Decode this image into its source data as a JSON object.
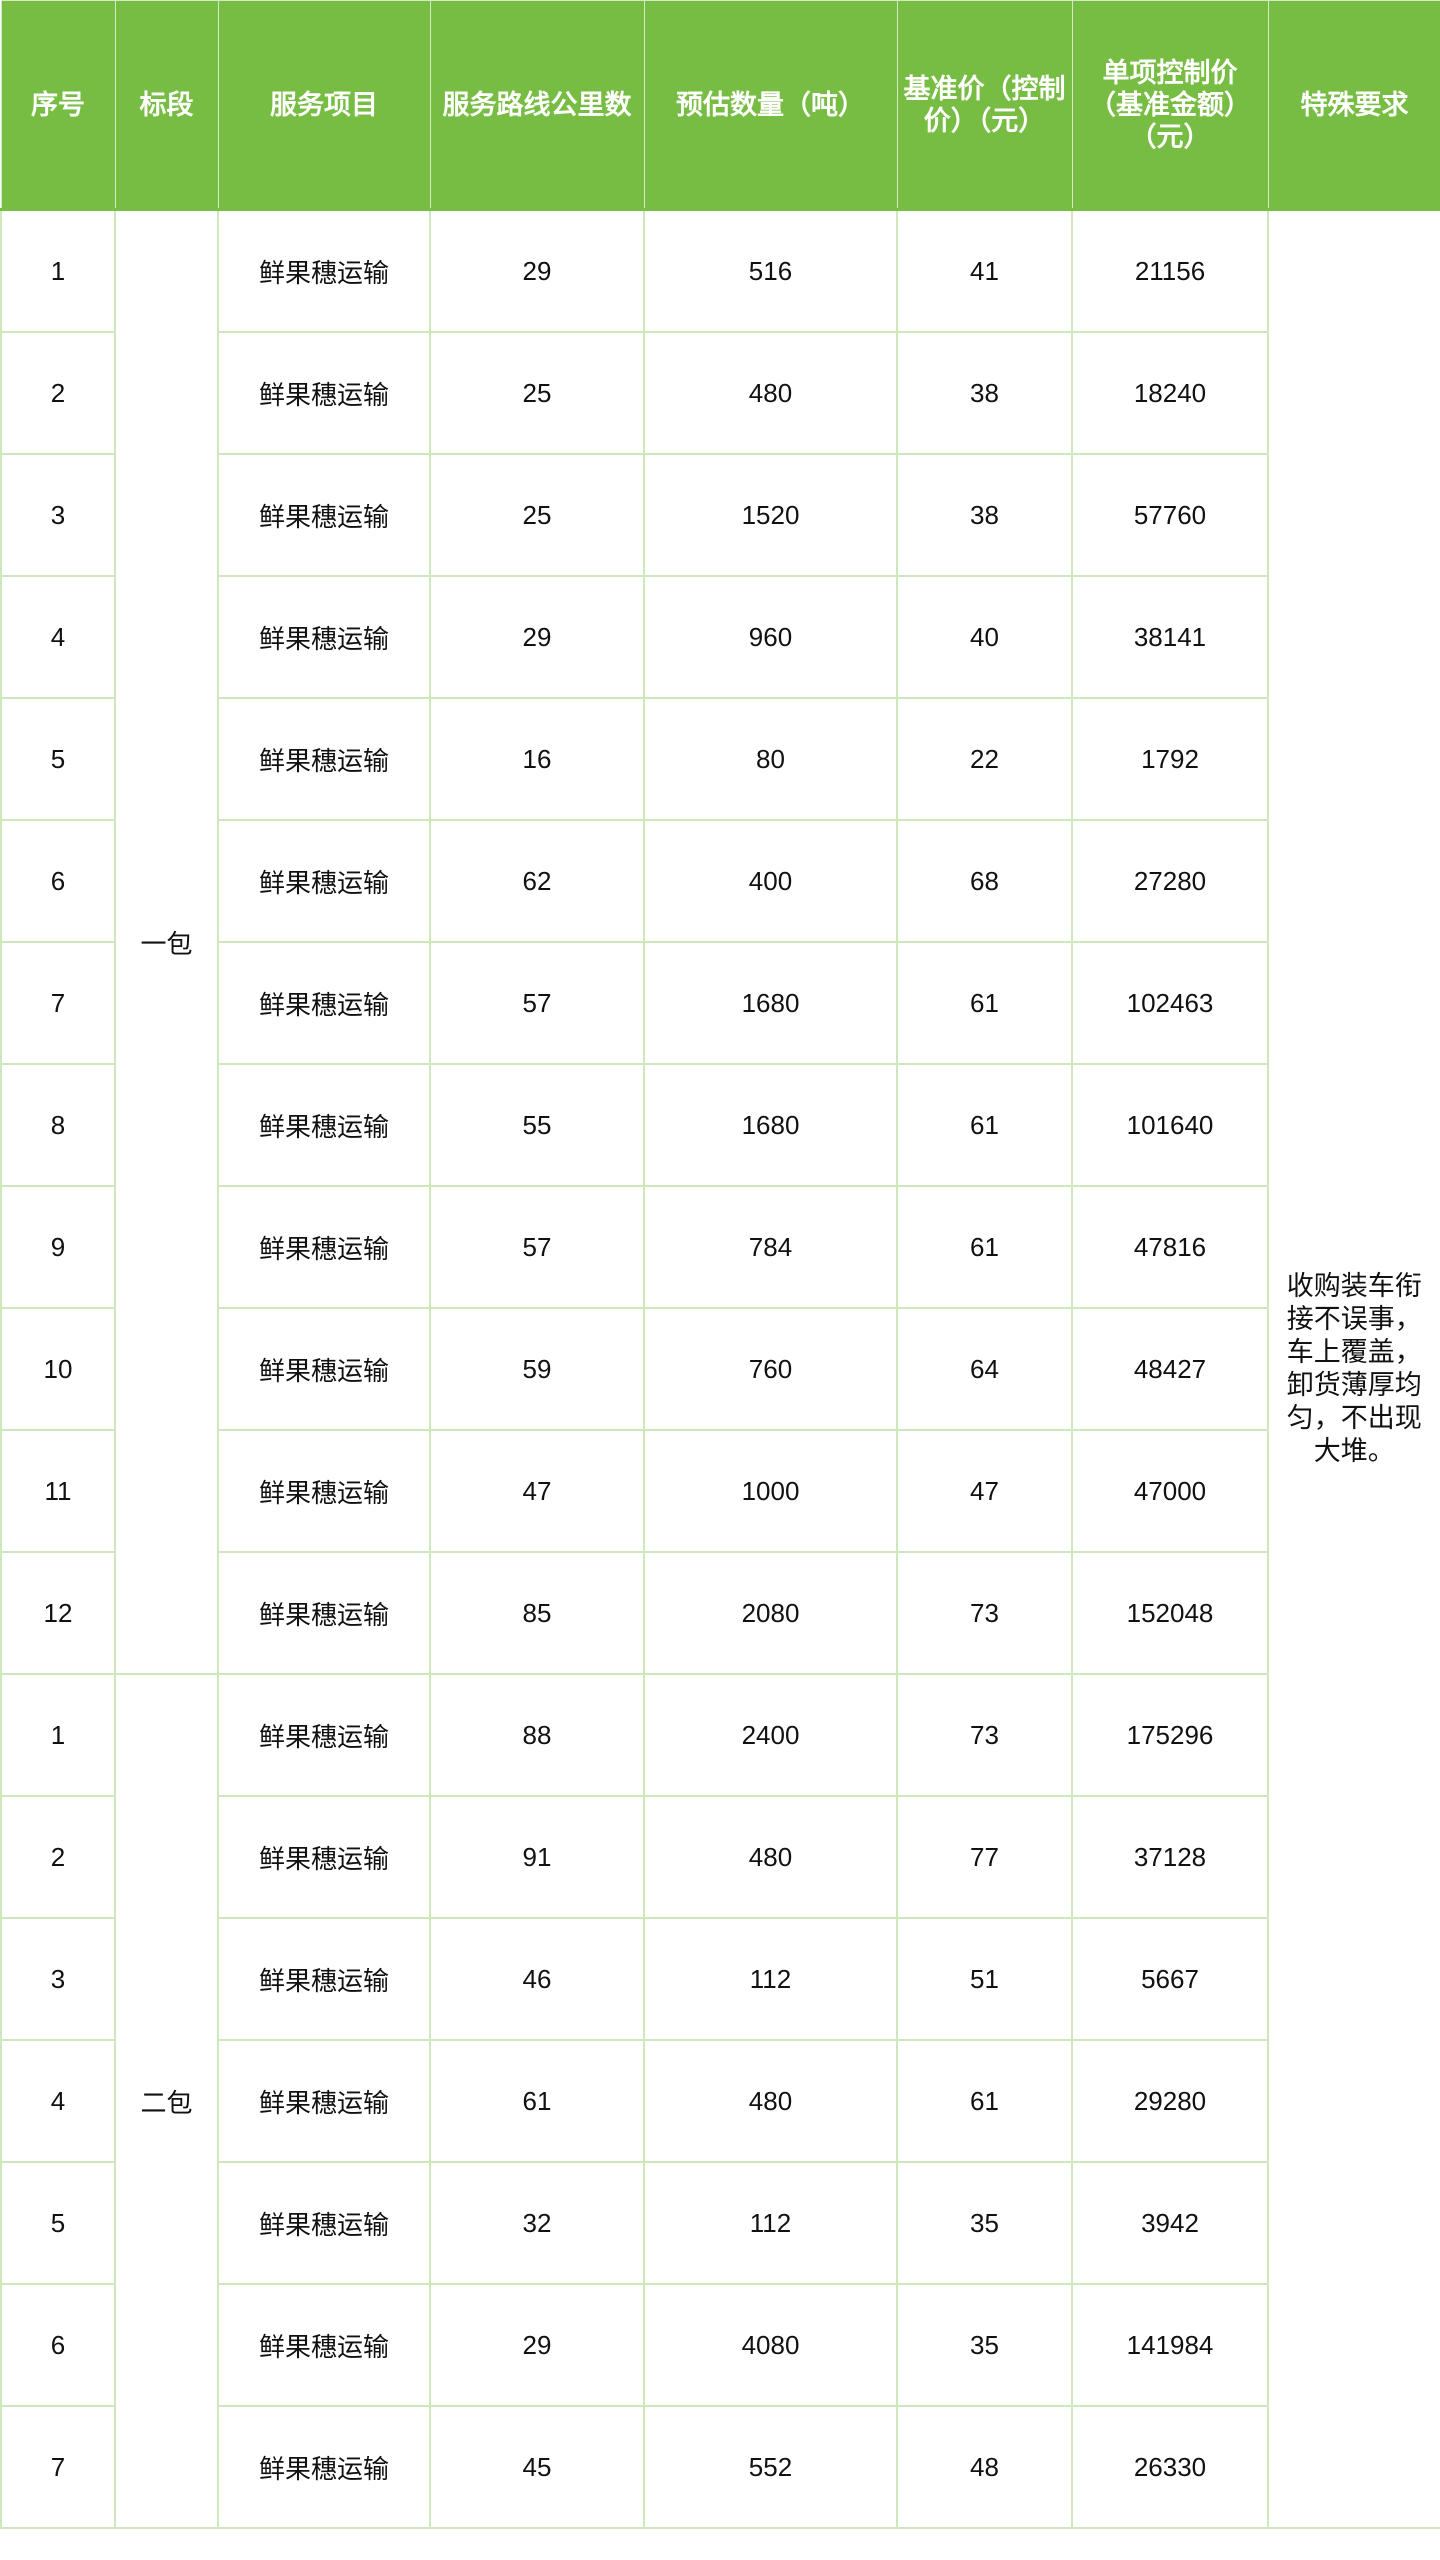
{
  "headers": [
    "序号",
    "标段",
    "服务项目",
    "服务路线公里数",
    "预估数量（吨）",
    "基准价（控制价）（元）",
    "单项控制价（基准金额）（元）",
    "特殊要求"
  ],
  "special_requirement": "收购装车衔接不误事，车上覆盖，卸货薄厚均匀，不出现大堆。",
  "theme": {
    "header_bg": "#78bd43",
    "grid": "#cfe7bd"
  },
  "packages": [
    {
      "label": "一包",
      "rows": [
        {
          "no": "1",
          "item": "鲜果穗运输",
          "km": "29",
          "qty": "516",
          "price": "41",
          "amount": "21156"
        },
        {
          "no": "2",
          "item": "鲜果穗运输",
          "km": "25",
          "qty": "480",
          "price": "38",
          "amount": "18240"
        },
        {
          "no": "3",
          "item": "鲜果穗运输",
          "km": "25",
          "qty": "1520",
          "price": "38",
          "amount": "57760"
        },
        {
          "no": "4",
          "item": "鲜果穗运输",
          "km": "29",
          "qty": "960",
          "price": "40",
          "amount": "38141"
        },
        {
          "no": "5",
          "item": "鲜果穗运输",
          "km": "16",
          "qty": "80",
          "price": "22",
          "amount": "1792"
        },
        {
          "no": "6",
          "item": "鲜果穗运输",
          "km": "62",
          "qty": "400",
          "price": "68",
          "amount": "27280"
        },
        {
          "no": "7",
          "item": "鲜果穗运输",
          "km": "57",
          "qty": "1680",
          "price": "61",
          "amount": "102463"
        },
        {
          "no": "8",
          "item": "鲜果穗运输",
          "km": "55",
          "qty": "1680",
          "price": "61",
          "amount": "101640"
        },
        {
          "no": "9",
          "item": "鲜果穗运输",
          "km": "57",
          "qty": "784",
          "price": "61",
          "amount": "47816"
        },
        {
          "no": "10",
          "item": "鲜果穗运输",
          "km": "59",
          "qty": "760",
          "price": "64",
          "amount": "48427"
        },
        {
          "no": "11",
          "item": "鲜果穗运输",
          "km": "47",
          "qty": "1000",
          "price": "47",
          "amount": "47000"
        },
        {
          "no": "12",
          "item": "鲜果穗运输",
          "km": "85",
          "qty": "2080",
          "price": "73",
          "amount": "152048"
        }
      ]
    },
    {
      "label": "二包",
      "rows": [
        {
          "no": "1",
          "item": "鲜果穗运输",
          "km": "88",
          "qty": "2400",
          "price": "73",
          "amount": "175296"
        },
        {
          "no": "2",
          "item": "鲜果穗运输",
          "km": "91",
          "qty": "480",
          "price": "77",
          "amount": "37128"
        },
        {
          "no": "3",
          "item": "鲜果穗运输",
          "km": "46",
          "qty": "112",
          "price": "51",
          "amount": "5667"
        },
        {
          "no": "4",
          "item": "鲜果穗运输",
          "km": "61",
          "qty": "480",
          "price": "61",
          "amount": "29280"
        },
        {
          "no": "5",
          "item": "鲜果穗运输",
          "km": "32",
          "qty": "112",
          "price": "35",
          "amount": "3942"
        },
        {
          "no": "6",
          "item": "鲜果穗运输",
          "km": "29",
          "qty": "4080",
          "price": "35",
          "amount": "141984"
        },
        {
          "no": "7",
          "item": "鲜果穗运输",
          "km": "45",
          "qty": "552",
          "price": "48",
          "amount": "26330"
        }
      ]
    }
  ]
}
